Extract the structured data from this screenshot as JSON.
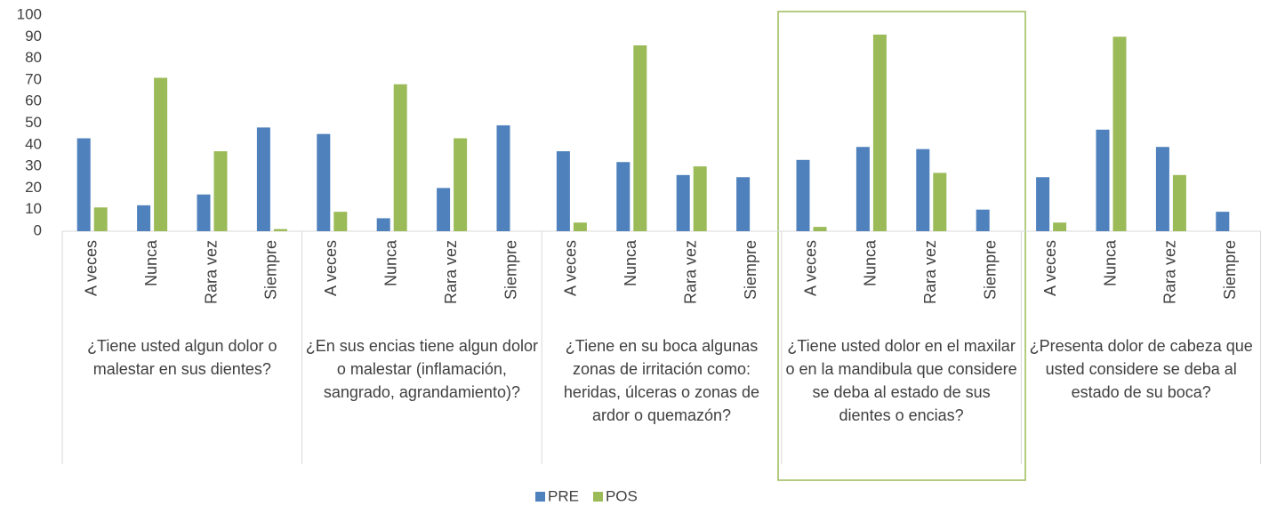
{
  "chart_data": {
    "type": "bar",
    "categories": [
      "A veces",
      "Nunca",
      "Rara vez",
      "Siempre",
      "A veces",
      "Nunca",
      "Rara vez",
      "Siempre",
      "A veces",
      "Nunca",
      "Rara vez",
      "Siempre",
      "A veces",
      "Nunca",
      "Rara vez",
      "Siempre",
      "A veces",
      "Nunca",
      "Rara vez",
      "Siempre"
    ],
    "groups": [
      "¿Tiene usted algun dolor o malestar en sus dientes?",
      "¿En sus encias tiene algun dolor o malestar (inflamación, sangrado, agrandamiento)?",
      "¿Tiene en su boca algunas zonas de irritación como: heridas, úlceras o zonas de ardor o quemazón?",
      "¿Tiene usted dolor en el maxilar o en la mandibula que considere se deba al estado de sus dientes o encias?",
      "¿Presenta dolor de cabeza que usted considere se deba al estado de su boca?"
    ],
    "series": [
      {
        "name": "PRE",
        "color": "#4f81bd",
        "values": [
          43,
          12,
          17,
          48,
          45,
          6,
          20,
          49,
          37,
          32,
          26,
          25,
          33,
          39,
          38,
          10,
          25,
          47,
          39,
          9
        ]
      },
      {
        "name": "POS",
        "color": "#9bbb59",
        "values": [
          11,
          71,
          37,
          1,
          9,
          68,
          43,
          0,
          4,
          86,
          30,
          0,
          2,
          91,
          27,
          0,
          4,
          90,
          26,
          0
        ]
      }
    ],
    "ylim": [
      0,
      100
    ],
    "yticks": [
      0,
      10,
      20,
      30,
      40,
      50,
      60,
      70,
      80,
      90,
      100
    ],
    "grid": false,
    "legend": "bottom"
  }
}
